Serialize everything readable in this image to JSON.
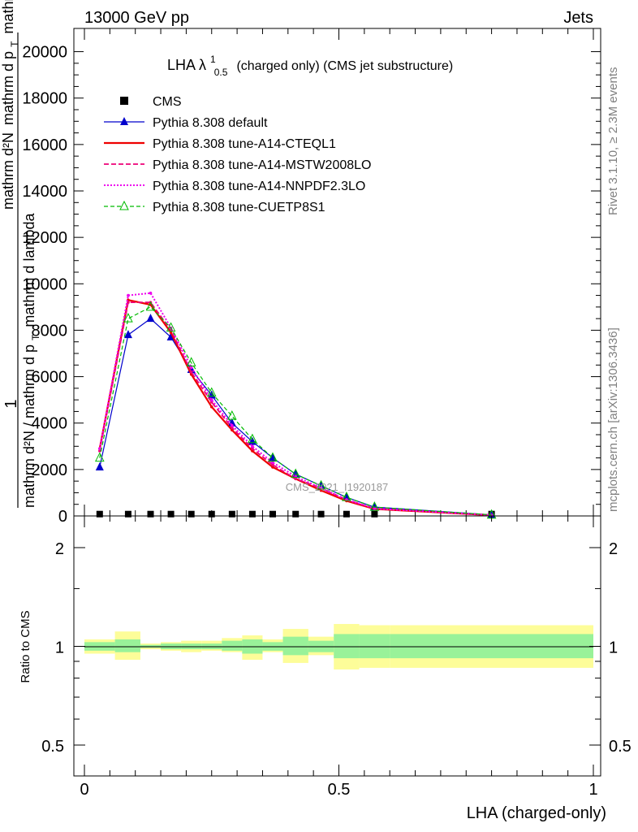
{
  "header": {
    "left": "13000 GeV pp",
    "right": "Jets"
  },
  "side_labels": {
    "rivet": "Rivet 3.1.10, ≥ 2.3M events",
    "mcplots": "mcplots.cern.ch [arXiv:1306.3436]"
  },
  "chart_data": {
    "type": "line",
    "title": "LHA λ",
    "title_super": "1",
    "title_sub": "0.5",
    "title_rest": "(charged only) (CMS jet substructure)",
    "watermark": "CMS_2021_I1920187",
    "xlabel": "LHA (charged-only)",
    "ylabel_numerator": "1",
    "ylabel_denominator": "mathrm d²N / mathrm d p",
    "ylabel_denominator_sub": "T",
    "ylabel_denominator_tail": "mathrm d lambda",
    "ylabel_top": "mathrm d²N",
    "ylabel_top_tail": "mathrm d p",
    "ylabel_top_sub": "T",
    "ylabel_top_end": "mathrm d lambda",
    "ratio_ylabel": "Ratio to CMS",
    "xlim": [
      0,
      1
    ],
    "ylim": [
      0,
      21000
    ],
    "ratio_ylim": [
      0.4,
      2.4
    ],
    "xticks": [
      0,
      0.5,
      1
    ],
    "xtick_labels": [
      "0",
      "0.5",
      "1"
    ],
    "yticks": [
      0,
      2000,
      4000,
      6000,
      8000,
      10000,
      12000,
      14000,
      16000,
      18000,
      20000
    ],
    "ytick_labels": [
      "0",
      "2000",
      "4000",
      "6000",
      "8000",
      "10000",
      "12000",
      "14000",
      "16000",
      "18000",
      "20000"
    ],
    "ratio_yticks": [
      0.5,
      1,
      2
    ],
    "ratio_ytick_labels": [
      "0.5",
      "1",
      "2"
    ],
    "legend_position": "top-left",
    "x": [
      0.03,
      0.086,
      0.13,
      0.17,
      0.21,
      0.25,
      0.29,
      0.33,
      0.37,
      0.415,
      0.465,
      0.515,
      0.57,
      0.8
    ],
    "series": [
      {
        "name": "CMS",
        "color": "#000000",
        "style": "data",
        "values": [
          80,
          80,
          80,
          80,
          80,
          80,
          80,
          80,
          80,
          80,
          80,
          80,
          80,
          80
        ]
      },
      {
        "name": "Pythia 8.308 default",
        "color": "#0000cc",
        "style": "solid-triangle",
        "values": [
          2100,
          7800,
          8500,
          7700,
          6300,
          5200,
          4000,
          3200,
          2500,
          1800,
          1300,
          800,
          380,
          50
        ]
      },
      {
        "name": "Pythia 8.308 tune-A14-CTEQL1",
        "color": "#ee0000",
        "style": "solid-thick",
        "values": [
          2900,
          9300,
          9100,
          7900,
          6100,
          4700,
          3700,
          2800,
          2100,
          1600,
          1100,
          650,
          300,
          30
        ]
      },
      {
        "name": "Pythia 8.308 tune-A14-MSTW2008LO",
        "color": "#ee0077",
        "style": "dashed",
        "values": [
          2800,
          9200,
          9200,
          8000,
          6200,
          4900,
          3800,
          2900,
          2200,
          1600,
          1200,
          700,
          320,
          35
        ]
      },
      {
        "name": "Pythia 8.308 tune-A14-NNPDF2.3LO",
        "color": "#ee00ee",
        "style": "dotted",
        "values": [
          2900,
          9500,
          9600,
          8100,
          6400,
          5000,
          3900,
          3000,
          2300,
          1700,
          1200,
          700,
          320,
          35
        ]
      },
      {
        "name": "Pythia 8.308 tune-CUETP8S1",
        "color": "#00bb00",
        "style": "dashed-open-triangle",
        "values": [
          2500,
          8500,
          9000,
          8100,
          6600,
          5300,
          4300,
          3300,
          2500,
          1800,
          1300,
          800,
          380,
          45
        ]
      }
    ],
    "ratio_bands": {
      "edges": [
        0,
        0.06,
        0.11,
        0.15,
        0.19,
        0.23,
        0.27,
        0.31,
        0.35,
        0.39,
        0.44,
        0.49,
        0.54,
        0.6,
        1.0
      ],
      "stat": [
        [
          0.97,
          1.03
        ],
        [
          0.96,
          1.05
        ],
        [
          0.99,
          1.01
        ],
        [
          0.98,
          1.02
        ],
        [
          0.98,
          1.02
        ],
        [
          0.98,
          1.02
        ],
        [
          0.97,
          1.04
        ],
        [
          0.95,
          1.05
        ],
        [
          0.97,
          1.03
        ],
        [
          0.94,
          1.07
        ],
        [
          0.96,
          1.04
        ],
        [
          0.92,
          1.09
        ],
        [
          0.92,
          1.09
        ],
        [
          0.92,
          1.09
        ]
      ],
      "total": [
        [
          0.95,
          1.05
        ],
        [
          0.91,
          1.11
        ],
        [
          0.98,
          1.02
        ],
        [
          0.97,
          1.03
        ],
        [
          0.96,
          1.04
        ],
        [
          0.97,
          1.04
        ],
        [
          0.96,
          1.06
        ],
        [
          0.91,
          1.08
        ],
        [
          0.96,
          1.05
        ],
        [
          0.89,
          1.13
        ],
        [
          0.94,
          1.07
        ],
        [
          0.85,
          1.17
        ],
        [
          0.86,
          1.16
        ],
        [
          0.86,
          1.16
        ]
      ],
      "stat_color": "#99f299",
      "total_color": "#fdfd99"
    }
  }
}
